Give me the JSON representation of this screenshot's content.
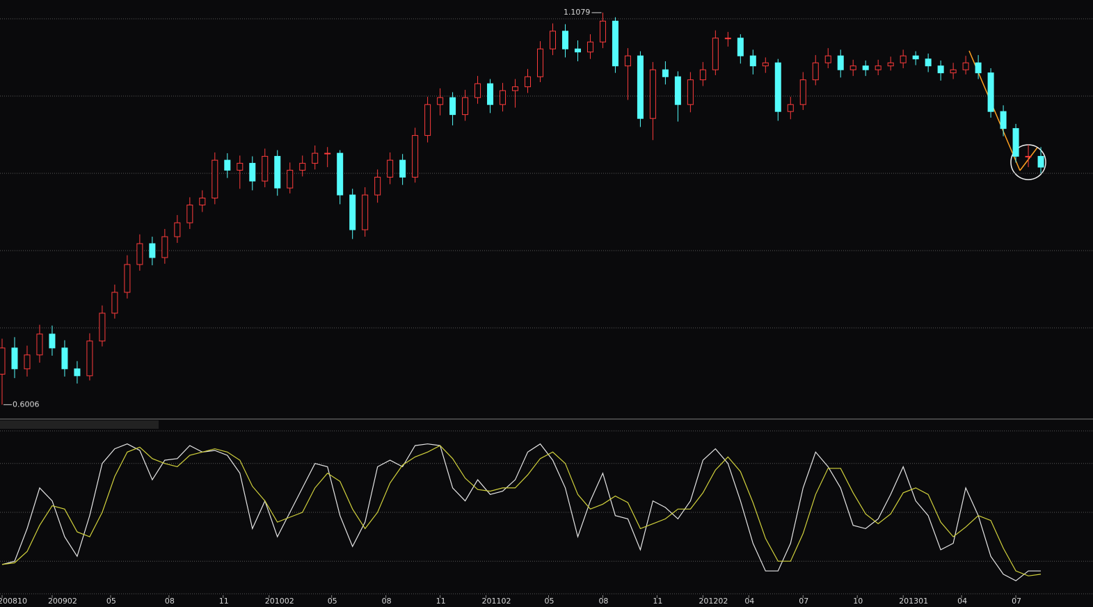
{
  "chart_data": [
    {
      "type": "candlestick",
      "x": [
        0,
        3,
        6,
        9,
        12,
        15,
        18,
        21,
        24,
        27,
        30,
        33,
        36,
        39,
        42,
        45,
        48,
        51,
        54,
        57,
        60,
        63,
        66,
        69,
        72,
        75,
        78,
        81,
        84,
        87,
        90,
        93,
        96,
        99,
        102,
        105,
        108,
        111,
        114,
        117,
        120,
        123,
        126,
        129,
        132,
        135,
        138,
        141,
        144,
        147,
        150,
        153,
        156,
        159,
        162,
        165,
        168,
        171,
        174,
        177,
        180,
        183,
        186,
        189,
        192,
        195,
        198,
        201,
        204,
        207,
        210,
        213,
        216,
        219,
        222,
        225,
        228,
        231,
        234,
        237,
        240,
        243,
        246,
        249
      ],
      "open": [
        0.64,
        0.674,
        0.647,
        0.665,
        0.692,
        0.674,
        0.647,
        0.638,
        0.683,
        0.719,
        0.746,
        0.782,
        0.809,
        0.791,
        0.818,
        0.836,
        0.859,
        0.868,
        0.917,
        0.904,
        0.913,
        0.89,
        0.922,
        0.881,
        0.904,
        0.913,
        0.926,
        0.926,
        0.872,
        0.827,
        0.872,
        0.895,
        0.917,
        0.895,
        0.949,
        0.989,
        0.998,
        0.976,
        0.998,
        1.016,
        0.989,
        1.007,
        1.012,
        1.025,
        1.061,
        1.084,
        1.061,
        1.057,
        1.07,
        1.097,
        1.039,
        1.052,
        0.971,
        1.034,
        1.025,
        0.989,
        1.021,
        1.034,
        1.075,
        1.075,
        1.052,
        1.039,
        1.043,
        0.98,
        0.989,
        1.021,
        1.043,
        1.052,
        1.034,
        1.039,
        1.034,
        1.039,
        1.043,
        1.052,
        1.048,
        1.039,
        1.03,
        1.034,
        1.043,
        1.03,
        0.98,
        0.958,
        0.922,
        0.922
      ],
      "high": [
        0.686,
        0.688,
        0.677,
        0.704,
        0.703,
        0.684,
        0.657,
        0.693,
        0.729,
        0.756,
        0.794,
        0.821,
        0.818,
        0.828,
        0.846,
        0.869,
        0.878,
        0.927,
        0.926,
        0.923,
        0.922,
        0.932,
        0.93,
        0.914,
        0.923,
        0.936,
        0.934,
        0.93,
        0.88,
        0.882,
        0.905,
        0.927,
        0.925,
        0.959,
        0.999,
        1.01,
        1.005,
        1.008,
        1.026,
        1.022,
        1.017,
        1.022,
        1.035,
        1.071,
        1.094,
        1.093,
        1.072,
        1.08,
        1.1079,
        1.102,
        1.062,
        1.058,
        1.044,
        1.045,
        1.032,
        1.031,
        1.044,
        1.085,
        1.083,
        1.08,
        1.06,
        1.05,
        1.048,
        0.999,
        1.031,
        1.053,
        1.062,
        1.06,
        1.047,
        1.046,
        1.047,
        1.051,
        1.06,
        1.058,
        1.055,
        1.046,
        1.043,
        1.052,
        1.053,
        1.036,
        0.988,
        0.964,
        0.937,
        0.934
      ],
      "low": [
        0.6006,
        0.635,
        0.637,
        0.655,
        0.664,
        0.637,
        0.628,
        0.632,
        0.676,
        0.712,
        0.738,
        0.774,
        0.781,
        0.783,
        0.81,
        0.828,
        0.85,
        0.86,
        0.894,
        0.88,
        0.878,
        0.882,
        0.871,
        0.874,
        0.896,
        0.905,
        0.908,
        0.86,
        0.815,
        0.818,
        0.862,
        0.886,
        0.885,
        0.888,
        0.94,
        0.975,
        0.962,
        0.968,
        0.99,
        0.978,
        0.98,
        0.985,
        1.004,
        1.018,
        1.053,
        1.05,
        1.045,
        1.048,
        1.062,
        1.03,
        0.995,
        0.96,
        0.943,
        1.015,
        0.967,
        0.979,
        1.013,
        1.027,
        1.064,
        1.042,
        1.028,
        1.03,
        0.968,
        0.97,
        0.982,
        1.014,
        1.036,
        1.024,
        1.026,
        1.026,
        1.027,
        1.033,
        1.036,
        1.04,
        1.031,
        1.02,
        1.022,
        1.028,
        1.022,
        0.972,
        0.948,
        0.914,
        0.908,
        0.9
      ],
      "close": [
        0.674,
        0.647,
        0.665,
        0.692,
        0.674,
        0.647,
        0.638,
        0.683,
        0.719,
        0.746,
        0.782,
        0.809,
        0.791,
        0.818,
        0.836,
        0.859,
        0.868,
        0.917,
        0.904,
        0.913,
        0.89,
        0.922,
        0.881,
        0.904,
        0.913,
        0.926,
        0.926,
        0.872,
        0.827,
        0.872,
        0.895,
        0.917,
        0.895,
        0.949,
        0.989,
        0.998,
        0.976,
        0.998,
        1.016,
        0.989,
        1.007,
        1.012,
        1.025,
        1.061,
        1.084,
        1.061,
        1.057,
        1.07,
        1.097,
        1.039,
        1.052,
        0.971,
        1.034,
        1.025,
        0.989,
        1.021,
        1.034,
        1.075,
        1.075,
        1.052,
        1.039,
        1.043,
        0.98,
        0.989,
        1.021,
        1.043,
        1.052,
        1.034,
        1.039,
        1.034,
        1.039,
        1.043,
        1.052,
        1.048,
        1.039,
        1.03,
        1.034,
        1.043,
        1.03,
        0.98,
        0.958,
        0.922,
        0.922,
        0.908
      ],
      "up_color": "#ff3c3c",
      "down_color": "#54fcfc",
      "ylim": [
        0.5838,
        1.1243
      ],
      "yticks": [
        0.7,
        0.8,
        0.9,
        1.0,
        1.1
      ],
      "grid": true,
      "xlim": [
        -0.5,
        261
      ],
      "xticks": [
        {
          "value": 0,
          "label": "200810"
        },
        {
          "value": 12,
          "label": "200902"
        },
        {
          "value": 26,
          "label": "05"
        },
        {
          "value": 40,
          "label": "08"
        },
        {
          "value": 53,
          "label": "11"
        },
        {
          "value": 64,
          "label": "201002"
        },
        {
          "value": 79,
          "label": "05"
        },
        {
          "value": 92,
          "label": "08"
        },
        {
          "value": 105,
          "label": "11"
        },
        {
          "value": 116,
          "label": "201102"
        },
        {
          "value": 131,
          "label": "05"
        },
        {
          "value": 144,
          "label": "08"
        },
        {
          "value": 157,
          "label": "11"
        },
        {
          "value": 168,
          "label": "201202"
        },
        {
          "value": 179,
          "label": "04"
        },
        {
          "value": 192,
          "label": "07"
        },
        {
          "value": 205,
          "label": "10"
        },
        {
          "value": 216,
          "label": "201301"
        },
        {
          "value": 230,
          "label": "04"
        },
        {
          "value": 243,
          "label": "07"
        }
      ],
      "annotations": [
        {
          "text": "1.1079",
          "value": 1.1079
        },
        {
          "text": "0.6006",
          "value": 0.6006
        }
      ]
    },
    {
      "type": "line",
      "x": [
        0,
        3,
        6,
        9,
        12,
        15,
        18,
        21,
        24,
        27,
        30,
        33,
        36,
        39,
        42,
        45,
        48,
        51,
        54,
        57,
        60,
        63,
        66,
        69,
        72,
        75,
        78,
        81,
        84,
        87,
        90,
        93,
        96,
        99,
        102,
        105,
        108,
        111,
        114,
        117,
        120,
        123,
        126,
        129,
        132,
        135,
        138,
        141,
        144,
        147,
        150,
        153,
        156,
        159,
        162,
        165,
        168,
        171,
        174,
        177,
        180,
        183,
        186,
        189,
        192,
        195,
        198,
        201,
        204,
        207,
        210,
        213,
        216,
        219,
        222,
        225,
        228,
        231,
        234,
        237,
        240,
        243,
        246,
        249
      ],
      "ylim": [
        0,
        100
      ],
      "yticks": [
        0,
        20,
        50,
        80,
        100
      ],
      "grid": true,
      "series": [
        {
          "color": "#e6e6e6",
          "values": [
            18,
            20,
            40,
            65,
            57,
            35,
            23,
            48,
            80,
            89,
            92,
            88,
            70,
            82,
            83,
            91,
            87,
            88,
            85,
            74,
            40,
            57,
            35,
            50,
            65,
            80,
            78,
            48,
            29,
            44,
            78,
            82,
            78,
            91,
            92,
            91,
            65,
            57,
            70,
            61,
            63,
            70,
            87,
            92,
            82,
            65,
            35,
            57,
            74,
            48,
            46,
            27,
            57,
            53,
            46,
            57,
            82,
            89,
            80,
            57,
            31,
            14,
            14,
            31,
            65,
            87,
            78,
            65,
            42,
            40,
            46,
            61,
            78,
            57,
            48,
            27,
            31,
            65,
            48,
            23,
            12,
            8,
            14,
            14
          ]
        },
        {
          "color": "#d2d23c",
          "values": [
            18,
            19,
            26,
            42,
            54,
            52,
            38,
            35,
            50,
            72,
            87,
            90,
            83,
            80,
            78,
            85,
            87,
            89,
            87,
            82,
            66,
            57,
            44,
            47,
            50,
            65,
            74,
            69,
            52,
            40,
            50,
            68,
            79,
            84,
            87,
            91,
            83,
            71,
            64,
            63,
            65,
            65,
            73,
            83,
            87,
            80,
            61,
            52,
            55,
            60,
            56,
            40,
            43,
            46,
            52,
            52,
            62,
            76,
            84,
            75,
            56,
            34,
            20,
            20,
            37,
            61,
            77,
            77,
            62,
            49,
            43,
            49,
            62,
            65,
            61,
            44,
            35,
            41,
            48,
            45,
            28,
            14,
            11,
            12
          ]
        }
      ]
    }
  ]
}
